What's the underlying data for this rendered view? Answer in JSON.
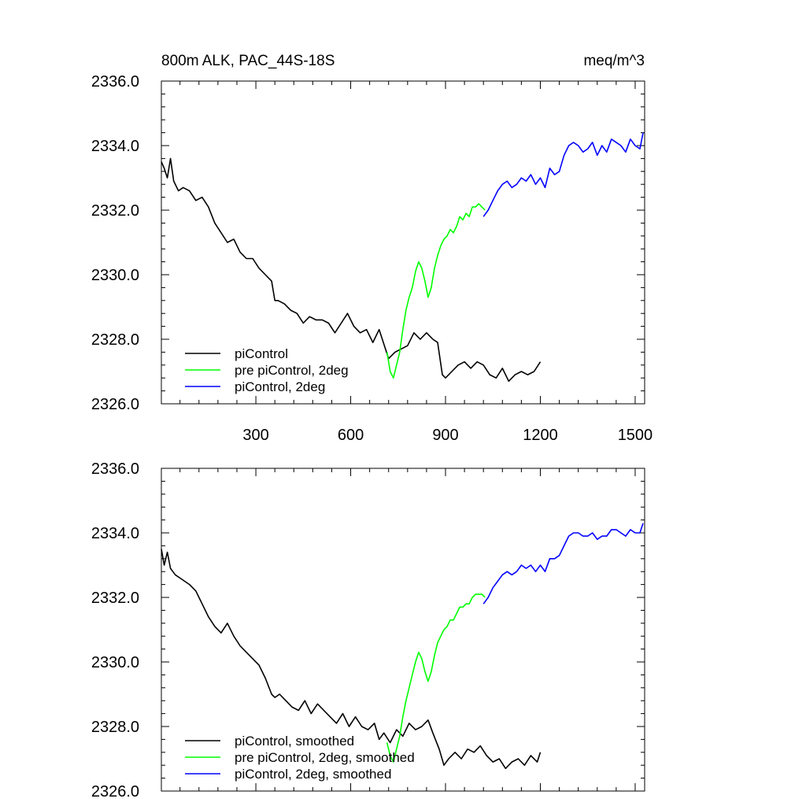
{
  "colors": {
    "black": "#000000",
    "green": "#00ff00",
    "blue": "#0000ff"
  },
  "chart_data": [
    {
      "type": "line",
      "title": "800m ALK, PAC_44S-18S",
      "units": "meq/m^3",
      "xlim": [
        1,
        1530
      ],
      "ylim": [
        2326.0,
        2336.0
      ],
      "xticks": [
        300,
        600,
        900,
        1200,
        1500
      ],
      "xtick_labels": [
        "300",
        "600",
        "900",
        "1200",
        "1500"
      ],
      "yticks": [
        2326.0,
        2328.0,
        2330.0,
        2332.0,
        2334.0,
        2336.0
      ],
      "ytick_labels": [
        "2326.0",
        "2328.0",
        "2330.0",
        "2332.0",
        "2334.0",
        "2336.0"
      ],
      "grid": false,
      "legend_position": "bottom-left",
      "series": [
        {
          "name": "piControl",
          "color": "#000000",
          "x": [
            1,
            10,
            20,
            30,
            40,
            55,
            70,
            90,
            110,
            130,
            150,
            170,
            190,
            210,
            230,
            250,
            270,
            290,
            310,
            330,
            350,
            360,
            370,
            390,
            410,
            430,
            450,
            470,
            490,
            510,
            530,
            550,
            570,
            590,
            610,
            630,
            650,
            670,
            690,
            700,
            720,
            740,
            760,
            780,
            800,
            820,
            840,
            860,
            875,
            890,
            900,
            920,
            940,
            960,
            980,
            1000,
            1020,
            1040,
            1060,
            1080,
            1100,
            1120,
            1140,
            1160,
            1180,
            1200
          ],
          "y": [
            2333.5,
            2333.3,
            2333.0,
            2333.6,
            2332.9,
            2332.6,
            2332.7,
            2332.6,
            2332.3,
            2332.4,
            2332.1,
            2331.6,
            2331.3,
            2331.0,
            2331.1,
            2330.7,
            2330.5,
            2330.5,
            2330.2,
            2330.0,
            2329.8,
            2329.2,
            2329.2,
            2329.1,
            2328.9,
            2328.8,
            2328.5,
            2328.7,
            2328.6,
            2328.6,
            2328.5,
            2328.2,
            2328.5,
            2328.8,
            2328.4,
            2328.2,
            2328.3,
            2327.9,
            2328.3,
            2328.0,
            2327.4,
            2327.6,
            2327.7,
            2327.8,
            2328.2,
            2328.0,
            2328.2,
            2328.0,
            2327.9,
            2326.9,
            2326.8,
            2327.0,
            2327.2,
            2327.3,
            2327.1,
            2327.3,
            2327.2,
            2326.9,
            2326.8,
            2327.1,
            2326.7,
            2326.9,
            2327.0,
            2326.9,
            2327.0,
            2327.3
          ]
        },
        {
          "name": "pre piControl, 2deg",
          "color": "#00ff00",
          "x": [
            715,
            725,
            735,
            745,
            755,
            765,
            775,
            785,
            795,
            805,
            815,
            825,
            835,
            845,
            855,
            865,
            875,
            885,
            895,
            905,
            915,
            925,
            935,
            945,
            955,
            965,
            975,
            985,
            995,
            1005,
            1015,
            1025
          ],
          "y": [
            2327.6,
            2327.0,
            2326.8,
            2327.2,
            2327.6,
            2328.3,
            2328.9,
            2329.3,
            2329.6,
            2330.1,
            2330.4,
            2330.2,
            2329.8,
            2329.3,
            2329.6,
            2330.2,
            2330.6,
            2330.9,
            2331.1,
            2331.2,
            2331.4,
            2331.3,
            2331.5,
            2331.8,
            2331.7,
            2331.9,
            2331.8,
            2332.1,
            2332.1,
            2332.2,
            2332.1,
            2332.0
          ]
        },
        {
          "name": "piControl, 2deg",
          "color": "#0000ff",
          "x": [
            1020,
            1035,
            1050,
            1065,
            1080,
            1095,
            1110,
            1125,
            1140,
            1155,
            1170,
            1185,
            1200,
            1215,
            1230,
            1245,
            1260,
            1275,
            1290,
            1305,
            1320,
            1335,
            1350,
            1365,
            1380,
            1395,
            1410,
            1425,
            1440,
            1455,
            1470,
            1485,
            1500,
            1515,
            1525
          ],
          "y": [
            2331.8,
            2332.0,
            2332.3,
            2332.6,
            2332.8,
            2332.9,
            2332.7,
            2332.8,
            2333.0,
            2332.9,
            2333.1,
            2332.8,
            2333.0,
            2332.7,
            2333.3,
            2333.1,
            2333.2,
            2333.7,
            2334.0,
            2334.1,
            2334.0,
            2333.8,
            2333.9,
            2334.1,
            2333.7,
            2334.0,
            2333.8,
            2334.2,
            2334.1,
            2334.0,
            2333.8,
            2334.2,
            2334.0,
            2333.9,
            2334.4
          ]
        }
      ]
    },
    {
      "type": "line",
      "title": "",
      "xlim": [
        1,
        1530
      ],
      "ylim": [
        2326.0,
        2336.0
      ],
      "yticks": [
        2326.0,
        2328.0,
        2330.0,
        2332.0,
        2334.0,
        2336.0
      ],
      "ytick_labels": [
        "2326.0",
        "2328.0",
        "2330.0",
        "2332.0",
        "2334.0",
        "2336.0"
      ],
      "grid": false,
      "legend_position": "bottom-left",
      "series": [
        {
          "name": "piControl, smoothed",
          "color": "#000000",
          "x": [
            1,
            10,
            20,
            30,
            45,
            60,
            75,
            90,
            110,
            130,
            150,
            170,
            190,
            210,
            230,
            250,
            270,
            290,
            310,
            330,
            350,
            360,
            375,
            395,
            415,
            435,
            455,
            475,
            495,
            515,
            535,
            555,
            575,
            595,
            615,
            635,
            655,
            675,
            690,
            705,
            725,
            745,
            765,
            785,
            805,
            825,
            845,
            860,
            880,
            895,
            910,
            930,
            950,
            970,
            990,
            1010,
            1030,
            1050,
            1070,
            1090,
            1110,
            1130,
            1150,
            1170,
            1190,
            1200
          ],
          "y": [
            2333.5,
            2333.0,
            2333.4,
            2332.9,
            2332.7,
            2332.6,
            2332.5,
            2332.4,
            2332.2,
            2331.8,
            2331.4,
            2331.1,
            2330.9,
            2331.2,
            2330.8,
            2330.5,
            2330.3,
            2330.1,
            2329.9,
            2329.5,
            2329.0,
            2328.9,
            2329.0,
            2328.8,
            2328.6,
            2328.5,
            2328.8,
            2328.4,
            2328.7,
            2328.5,
            2328.3,
            2328.1,
            2328.4,
            2328.0,
            2328.3,
            2328.0,
            2327.9,
            2328.1,
            2327.6,
            2327.8,
            2327.5,
            2327.9,
            2327.7,
            2328.1,
            2327.9,
            2328.0,
            2328.2,
            2327.8,
            2327.3,
            2326.8,
            2327.0,
            2327.2,
            2327.0,
            2327.3,
            2327.2,
            2327.4,
            2327.1,
            2326.9,
            2327.0,
            2326.7,
            2326.9,
            2327.0,
            2326.8,
            2327.1,
            2326.9,
            2327.2
          ]
        },
        {
          "name": "pre piControl, 2deg, smoothed",
          "color": "#00ff00",
          "x": [
            715,
            725,
            735,
            745,
            755,
            765,
            775,
            785,
            795,
            805,
            815,
            825,
            835,
            845,
            855,
            865,
            875,
            885,
            895,
            905,
            915,
            925,
            935,
            945,
            955,
            965,
            975,
            985,
            995,
            1005,
            1015,
            1025
          ],
          "y": [
            2327.5,
            2327.1,
            2326.9,
            2327.3,
            2327.7,
            2328.3,
            2328.8,
            2329.2,
            2329.6,
            2330.0,
            2330.3,
            2330.1,
            2329.7,
            2329.4,
            2329.7,
            2330.2,
            2330.6,
            2330.8,
            2331.0,
            2331.1,
            2331.3,
            2331.3,
            2331.5,
            2331.7,
            2331.7,
            2331.8,
            2331.8,
            2332.0,
            2332.1,
            2332.1,
            2332.1,
            2332.0
          ]
        },
        {
          "name": "piControl, 2deg, smoothed",
          "color": "#0000ff",
          "x": [
            1020,
            1035,
            1050,
            1065,
            1080,
            1095,
            1110,
            1125,
            1140,
            1155,
            1170,
            1185,
            1200,
            1215,
            1230,
            1245,
            1260,
            1275,
            1290,
            1305,
            1320,
            1335,
            1350,
            1365,
            1380,
            1395,
            1410,
            1425,
            1440,
            1455,
            1470,
            1485,
            1500,
            1515,
            1525
          ],
          "y": [
            2331.8,
            2332.0,
            2332.3,
            2332.5,
            2332.7,
            2332.8,
            2332.7,
            2332.8,
            2333.0,
            2332.9,
            2333.0,
            2332.8,
            2333.0,
            2332.8,
            2333.2,
            2333.2,
            2333.3,
            2333.6,
            2333.9,
            2334.0,
            2334.0,
            2333.9,
            2333.9,
            2334.0,
            2333.8,
            2333.9,
            2333.9,
            2334.1,
            2334.1,
            2334.0,
            2333.9,
            2334.1,
            2334.0,
            2334.0,
            2334.3
          ]
        }
      ]
    }
  ]
}
